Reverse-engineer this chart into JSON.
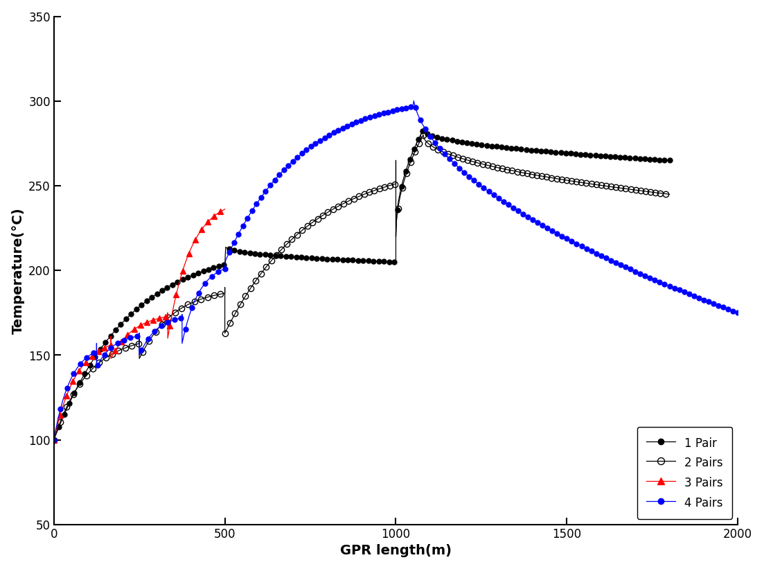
{
  "xlabel": "GPR length(m)",
  "ylabel": "Temperature(°C)",
  "xlim": [
    0,
    2000
  ],
  "ylim": [
    50,
    350
  ],
  "xticks": [
    0,
    500,
    1000,
    1500,
    2000
  ],
  "yticks": [
    50,
    100,
    150,
    200,
    250,
    300,
    350
  ],
  "background_color": "#ffffff",
  "legend_labels": [
    "1 Pair",
    "2 Pairs",
    "3 Pairs",
    "4 Pairs"
  ],
  "colors": [
    "black",
    "black",
    "red",
    "blue"
  ],
  "markers": [
    "o",
    "o",
    "^",
    "o"
  ],
  "fillstyles": [
    "full",
    "none",
    "full",
    "full"
  ],
  "markersizes": [
    5,
    6,
    6,
    5
  ],
  "linewidth": 0.8,
  "marker_every": 6
}
